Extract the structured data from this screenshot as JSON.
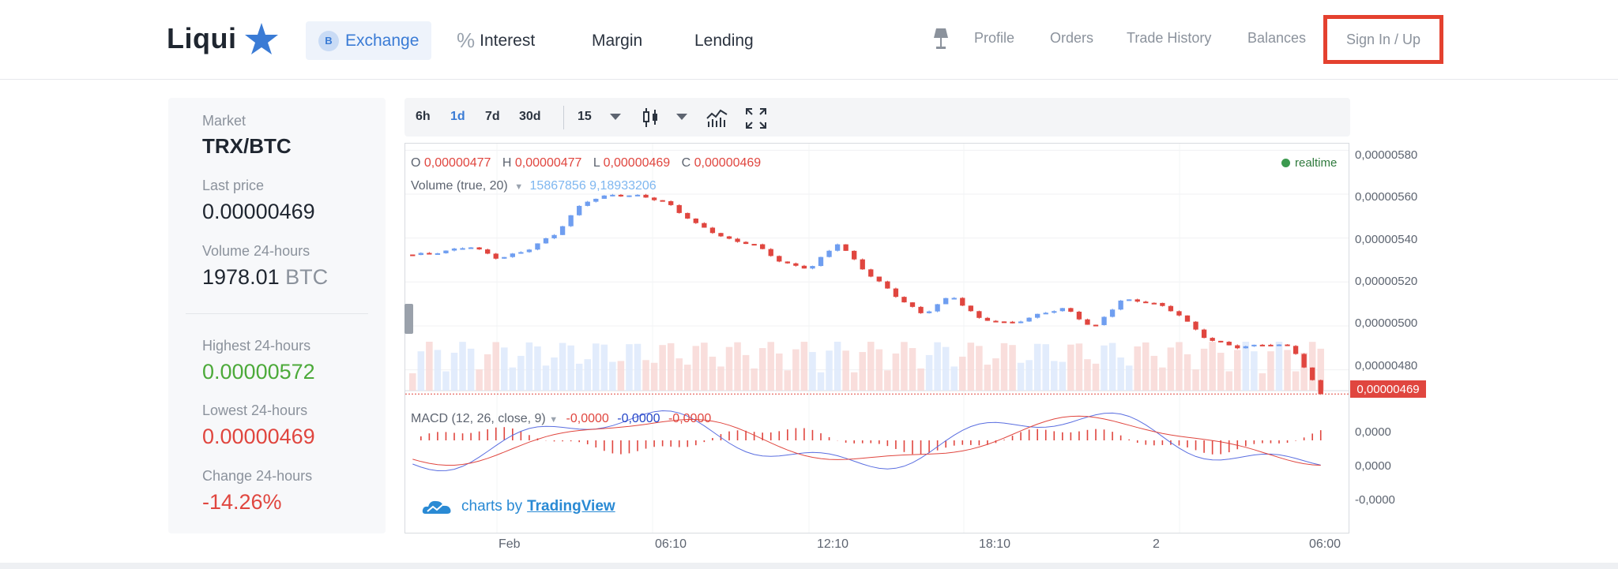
{
  "header": {
    "logo": "Liqui",
    "nav": [
      {
        "label": "Exchange",
        "icon": "exchange-coin-icon",
        "coin_letter": "B"
      },
      {
        "label": "Interest",
        "icon": "percent-icon"
      },
      {
        "label": "Margin"
      },
      {
        "label": "Lending"
      }
    ],
    "right_nav": [
      "Profile",
      "Orders",
      "Trade History",
      "Balances"
    ],
    "signin": "Sign In / Up",
    "accent": "#3a7bd5",
    "highlight": "#e4412f"
  },
  "market": {
    "market_label": "Market",
    "pair": "TRX/BTC",
    "last_price_label": "Last price",
    "last_price": "0.00000469",
    "volume_label": "Volume 24-hours",
    "volume": "1978.01",
    "volume_unit": "BTC",
    "high_label": "Highest 24-hours",
    "high": "0.00000572",
    "low_label": "Lowest 24-hours",
    "low": "0.00000469",
    "change_label": "Change 24-hours",
    "change": "-14.26%"
  },
  "toolbar": {
    "ranges": [
      "6h",
      "1d",
      "7d",
      "30d"
    ],
    "active_range": "1d",
    "interval": "15"
  },
  "chart": {
    "ohlc": {
      "o_label": "O",
      "o": "0,00000477",
      "h_label": "H",
      "h": "0,00000477",
      "l_label": "L",
      "l": "0,00000469",
      "c_label": "C",
      "c": "0,00000469"
    },
    "volume_label": "Volume (true, 20)",
    "volume_values": "15867856  9,18933206",
    "realtime": "realtime",
    "price_ticks": [
      "0,00000580",
      "0,00000560",
      "0,00000540",
      "0,00000520",
      "0,00000500",
      "0,00000480"
    ],
    "current_price": "0,00000469",
    "macd_label": "MACD (12, 26, close, 9)",
    "macd_values": [
      "-0,0000",
      "-0,0000",
      "-0,0000"
    ],
    "macd_ticks": [
      "0,0000",
      "0,0000",
      "-0,0000"
    ],
    "time_ticks": [
      "Feb",
      "06:10",
      "12:10",
      "18:10",
      "2",
      "06:00"
    ],
    "tv_prefix": "charts by",
    "tv_brand": "TradingView"
  },
  "chart_data": {
    "type": "candlestick",
    "title": "",
    "pair": "TRX/BTC",
    "interval_minutes": 15,
    "xlabel": "",
    "ylabel": "",
    "ylim": [
      4.68e-06,
      5.83e-06
    ],
    "x_ticks": [
      "Feb",
      "06:10",
      "12:10",
      "18:10",
      "2",
      "06:00"
    ],
    "y_ticks": [
      5.8e-06,
      5.6e-06,
      5.4e-06,
      5.2e-06,
      5e-06,
      4.8e-06
    ],
    "last_close": 4.69e-06,
    "trend_closes": [
      5.32e-06,
      5.34e-06,
      5.36e-06,
      5.31e-06,
      5.34e-06,
      5.42e-06,
      5.56e-06,
      5.6e-06,
      5.59e-06,
      5.56e-06,
      5.46e-06,
      5.4e-06,
      5.37e-06,
      5.29e-06,
      5.26e-06,
      5.38e-06,
      5.24e-06,
      5.14e-06,
      5.05e-06,
      5.14e-06,
      5.03e-06,
      5.01e-06,
      5.05e-06,
      5.08e-06,
      4.99e-06,
      5.12e-06,
      5.11e-06,
      5.05e-06,
      4.94e-06,
      4.9e-06,
      4.92e-06,
      4.9e-06,
      4.69e-06
    ]
  }
}
